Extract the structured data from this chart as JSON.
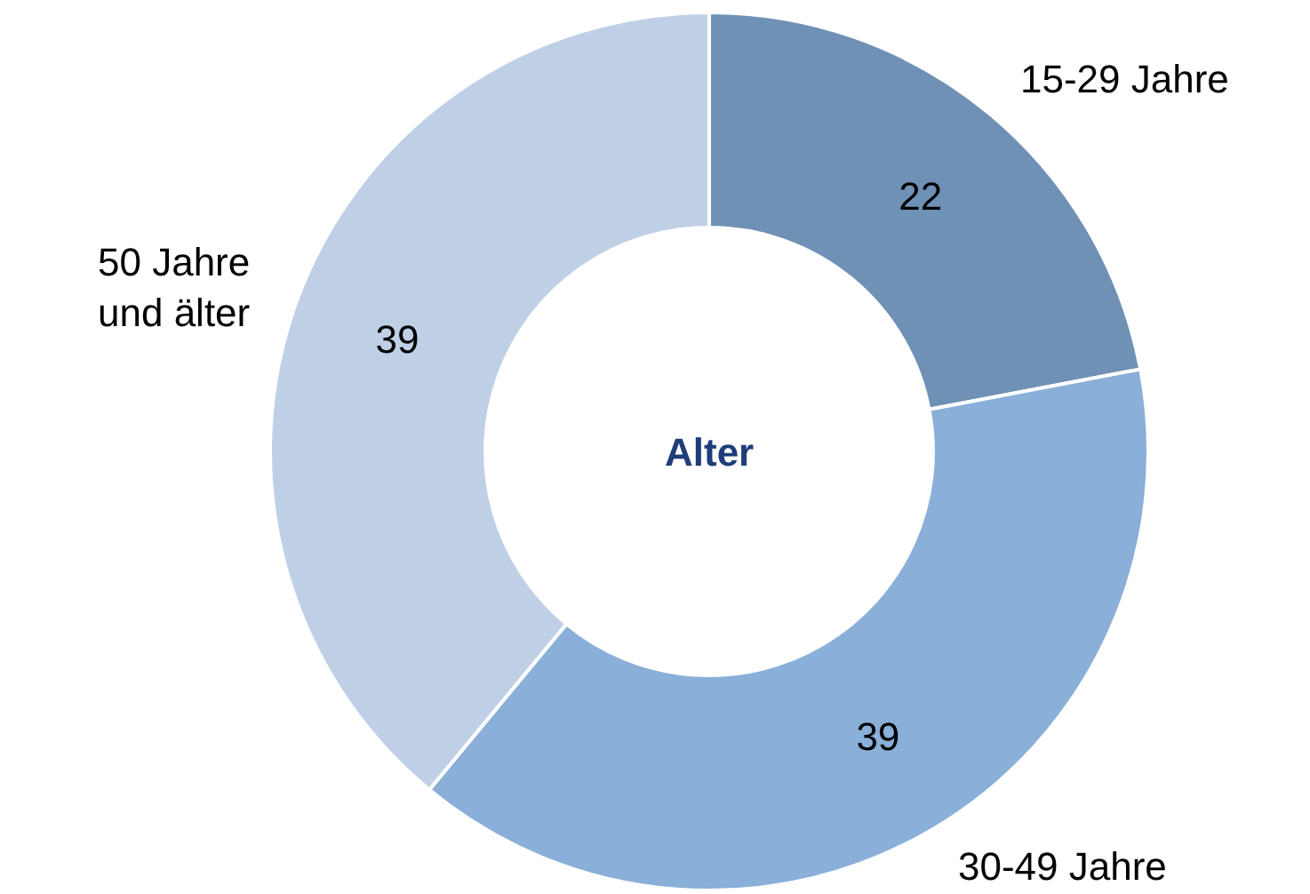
{
  "chart_data": {
    "type": "donut",
    "title": "Alter",
    "categories": [
      "15-29 Jahre",
      "30-49 Jahre",
      "50 Jahre\nund älter"
    ],
    "values": [
      22,
      39,
      39
    ],
    "colors": [
      "#6f91b5",
      "#8aafd8",
      "#bfd0e6"
    ],
    "data_labels": true,
    "legend": false
  }
}
